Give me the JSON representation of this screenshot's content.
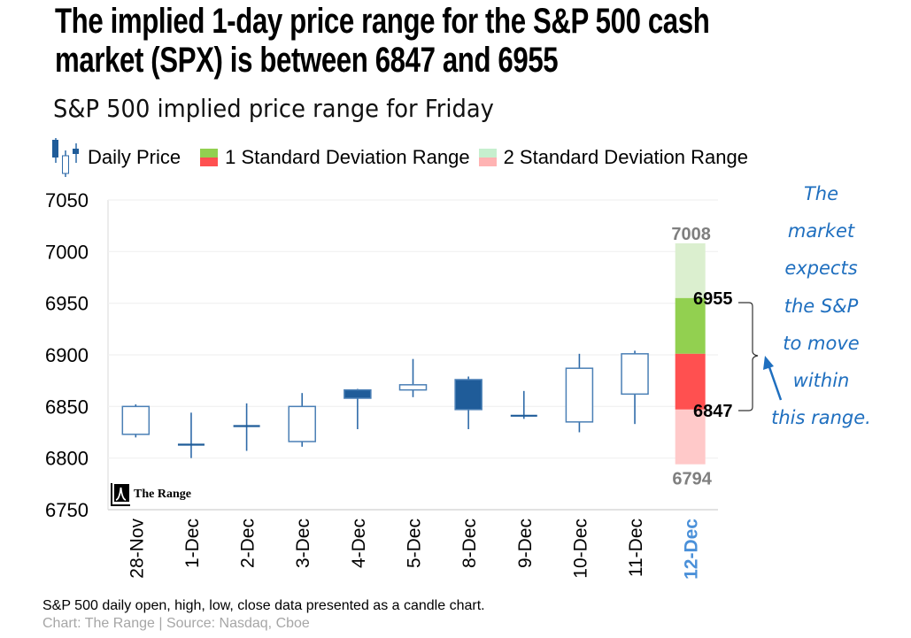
{
  "header": {
    "title_line1": "The implied 1-day price range for the S&P 500 cash",
    "title_line2": "market (SPX) is between 6847 and 6955",
    "subtitle": "S&P 500 implied price range for  Friday"
  },
  "legend": {
    "daily_price": "Daily Price",
    "one_sd": "1 Standard Deviation  Range",
    "two_sd": "2 Standard Deviation  Range"
  },
  "colors": {
    "candle": "#1f5c99",
    "candle_wick": "#2e6aa8",
    "one_sd_up": "#92d050",
    "one_sd_down": "#ff5050",
    "two_sd_up": "#dbefcf",
    "two_sd_down": "#ffc9c9",
    "highlight_label": "#4a90d9",
    "range_label_gray": "#7f7f7f",
    "annotation": "#1f6fbf"
  },
  "annotation": {
    "lines": [
      "The",
      "market",
      "expects",
      "the S&P",
      "to move",
      "within",
      "this range."
    ]
  },
  "logo_text": "The Range",
  "footnote": "S&P 500 daily open, high, low, close data presented as a candle chart.",
  "source": "Chart: The Range | Source: Nasdaq, Cboe",
  "chart_data": {
    "type": "candlestick",
    "title": "S&P 500 implied price range for Friday",
    "xlabel": "",
    "ylabel": "",
    "ylim": [
      6750,
      7050
    ],
    "yticks": [
      6750,
      6800,
      6850,
      6900,
      6950,
      7000,
      7050
    ],
    "grid": true,
    "legend_position": "top",
    "categories": [
      "28-Nov",
      "1-Dec",
      "2-Dec",
      "3-Dec",
      "4-Dec",
      "5-Dec",
      "8-Dec",
      "9-Dec",
      "10-Dec",
      "11-Dec",
      "12-Dec"
    ],
    "highlight_category": "12-Dec",
    "series": [
      {
        "name": "Daily Price",
        "ohlc": [
          {
            "date": "28-Nov",
            "open": 6823,
            "high": 6852,
            "low": 6820,
            "close": 6850
          },
          {
            "date": "1-Dec",
            "open": 6813,
            "high": 6844,
            "low": 6800,
            "close": 6813
          },
          {
            "date": "2-Dec",
            "open": 6831,
            "high": 6853,
            "low": 6807,
            "close": 6831
          },
          {
            "date": "3-Dec",
            "open": 6816,
            "high": 6863,
            "low": 6811,
            "close": 6850
          },
          {
            "date": "4-Dec",
            "open": 6866,
            "high": 6867,
            "low": 6828,
            "close": 6858
          },
          {
            "date": "5-Dec",
            "open": 6866,
            "high": 6896,
            "low": 6859,
            "close": 6871
          },
          {
            "date": "8-Dec",
            "open": 6876,
            "high": 6879,
            "low": 6828,
            "close": 6847
          },
          {
            "date": "9-Dec",
            "open": 6841,
            "high": 6865,
            "low": 6838,
            "close": 6841
          },
          {
            "date": "10-Dec",
            "open": 6835,
            "high": 6901,
            "low": 6825,
            "close": 6887
          },
          {
            "date": "11-Dec",
            "open": 6862,
            "high": 6904,
            "low": 6833,
            "close": 6901
          }
        ]
      }
    ],
    "implied_range": {
      "date": "12-Dec",
      "center": 6901,
      "one_sd_low": 6847,
      "one_sd_high": 6955,
      "two_sd_low": 6794,
      "two_sd_high": 7008
    },
    "range_labels": {
      "two_sd_high": "7008",
      "one_sd_high": "6955",
      "one_sd_low": "6847",
      "two_sd_low": "6794"
    }
  }
}
